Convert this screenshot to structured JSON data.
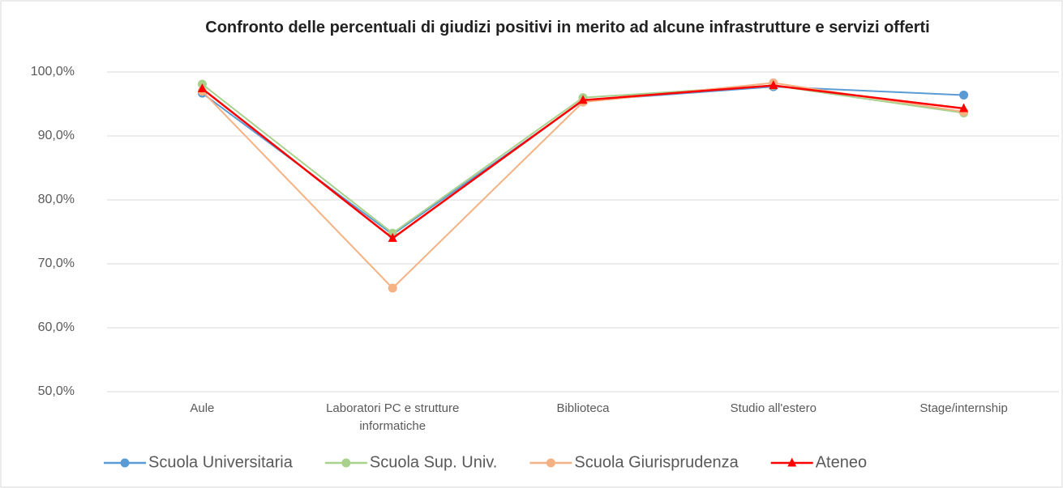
{
  "chart_data": {
    "type": "line",
    "title": "Confronto delle percentuali di giudizi positivi in merito ad alcune infrastrutture e servizi offerti",
    "categories": [
      "Aule",
      "Laboratori PC e strutture informatiche",
      "Biblioteca",
      "Studio all'estero",
      "Stage/internship"
    ],
    "series": [
      {
        "name": "Scuola Universitaria",
        "color": "#5b9bd5",
        "marker": "circle",
        "values": [
          96.7,
          74.6,
          95.5,
          97.7,
          96.4
        ]
      },
      {
        "name": "Scuola Sup. Univ.",
        "color": "#a9d18e",
        "marker": "circle",
        "values": [
          98.1,
          74.8,
          96.0,
          97.9,
          93.6
        ]
      },
      {
        "name": "Scuola Giurisprudenza",
        "color": "#f4b183",
        "marker": "circle",
        "values": [
          97.0,
          66.2,
          95.3,
          98.3,
          93.8
        ]
      },
      {
        "name": "Ateneo",
        "color": "#ff0000",
        "marker": "triangle",
        "values": [
          97.4,
          74.0,
          95.6,
          97.9,
          94.3
        ]
      }
    ],
    "ylim": [
      50,
      100
    ],
    "yticks": [
      {
        "value": 50,
        "label": "50,0%"
      },
      {
        "value": 60,
        "label": "60,0%"
      },
      {
        "value": 70,
        "label": "70,0%"
      },
      {
        "value": 80,
        "label": "80,0%"
      },
      {
        "value": 90,
        "label": "90,0%"
      },
      {
        "value": 100,
        "label": "100,0%"
      }
    ],
    "grid": true,
    "legend": "bottom"
  }
}
